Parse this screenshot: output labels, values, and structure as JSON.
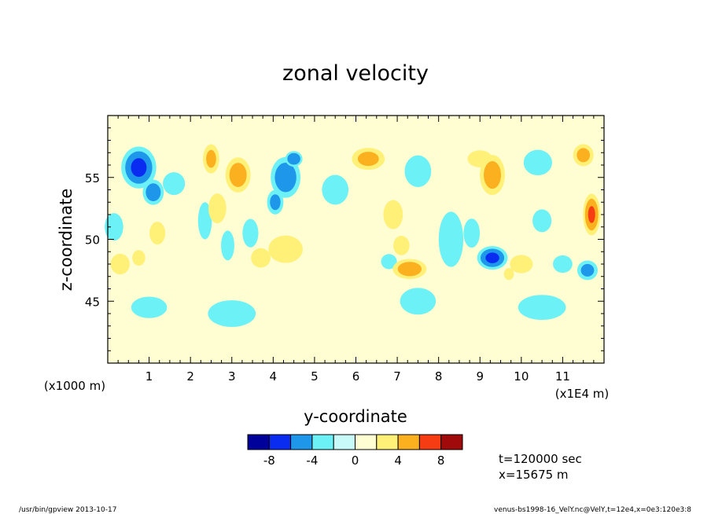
{
  "chart_data": {
    "type": "heatmap",
    "title": "zonal velocity",
    "xlabel": "y-coordinate",
    "ylabel": "z-coordinate",
    "x_unit_left": "(x1000 m)",
    "x_unit_right": "(x1E4 m)",
    "xlim": [
      0,
      12
    ],
    "ylim": [
      40,
      60
    ],
    "x_ticks": [
      "1",
      "2",
      "3",
      "4",
      "5",
      "6",
      "7",
      "8",
      "9",
      "10",
      "11"
    ],
    "y_ticks": [
      "45",
      "50",
      "55"
    ],
    "colorbar": {
      "levels": [
        -10,
        -8,
        -6,
        -4,
        -2,
        0,
        2,
        4,
        6,
        8,
        10
      ],
      "tick_labels": [
        "-8",
        "-4",
        "0",
        "4",
        "8"
      ],
      "colors": [
        "#00009a",
        "#0a2cf0",
        "#1e96ea",
        "#6cf2f6",
        "#c8fafa",
        "#fffdd2",
        "#fff078",
        "#fbb020",
        "#f63c12",
        "#a00a0a"
      ]
    },
    "blobs": [
      {
        "x": 0.75,
        "z": 55.8,
        "v": -6.2,
        "sx": 0.4,
        "sz": 1.6
      },
      {
        "x": 1.1,
        "z": 53.8,
        "v": -5.2,
        "sx": 0.25,
        "sz": 1.0
      },
      {
        "x": 0.3,
        "z": 48.0,
        "v": 3.6,
        "sx": 0.25,
        "sz": 0.9
      },
      {
        "x": 0.75,
        "z": 48.5,
        "v": 2.5,
        "sx": 0.2,
        "sz": 0.8
      },
      {
        "x": 1.2,
        "z": 50.5,
        "v": 2.4,
        "sx": 0.25,
        "sz": 1.2
      },
      {
        "x": 1.6,
        "z": 54.5,
        "v": -2.4,
        "sx": 0.35,
        "sz": 1.2
      },
      {
        "x": 2.5,
        "z": 56.5,
        "v": 4.4,
        "sx": 0.2,
        "sz": 1.2
      },
      {
        "x": 3.15,
        "z": 55.2,
        "v": 5.0,
        "sx": 0.3,
        "sz": 1.4
      },
      {
        "x": 2.65,
        "z": 52.5,
        "v": 3.0,
        "sx": 0.25,
        "sz": 1.4
      },
      {
        "x": 2.35,
        "z": 51.5,
        "v": -2.8,
        "sx": 0.2,
        "sz": 1.8
      },
      {
        "x": 2.9,
        "z": 49.5,
        "v": -2.6,
        "sx": 0.2,
        "sz": 1.5
      },
      {
        "x": 4.3,
        "z": 55.0,
        "v": -5.4,
        "sx": 0.35,
        "sz": 1.6
      },
      {
        "x": 4.5,
        "z": 56.5,
        "v": -5.8,
        "sx": 0.2,
        "sz": 0.6
      },
      {
        "x": 4.05,
        "z": 53.0,
        "v": -4.6,
        "sx": 0.2,
        "sz": 1.0
      },
      {
        "x": 3.45,
        "z": 50.5,
        "v": -2.4,
        "sx": 0.25,
        "sz": 1.5
      },
      {
        "x": 4.3,
        "z": 49.2,
        "v": 3.6,
        "sx": 0.45,
        "sz": 1.2
      },
      {
        "x": 3.7,
        "z": 48.5,
        "v": 2.5,
        "sx": 0.3,
        "sz": 1.0
      },
      {
        "x": 6.3,
        "z": 56.5,
        "v": 4.6,
        "sx": 0.4,
        "sz": 0.9
      },
      {
        "x": 6.9,
        "z": 52.0,
        "v": 2.5,
        "sx": 0.3,
        "sz": 1.5
      },
      {
        "x": 7.3,
        "z": 47.6,
        "v": 5.2,
        "sx": 0.4,
        "sz": 0.8
      },
      {
        "x": 7.1,
        "z": 49.5,
        "v": 2.5,
        "sx": 0.25,
        "sz": 1.0
      },
      {
        "x": 5.5,
        "z": 54.0,
        "v": -2.6,
        "sx": 0.4,
        "sz": 1.5
      },
      {
        "x": 6.8,
        "z": 48.2,
        "v": -2.4,
        "sx": 0.25,
        "sz": 0.8
      },
      {
        "x": 7.5,
        "z": 55.5,
        "v": -2.6,
        "sx": 0.4,
        "sz": 1.6
      },
      {
        "x": 9.3,
        "z": 55.2,
        "v": 5.0,
        "sx": 0.3,
        "sz": 1.6
      },
      {
        "x": 9.0,
        "z": 56.5,
        "v": 3.0,
        "sx": 0.35,
        "sz": 0.8
      },
      {
        "x": 10.4,
        "z": 56.2,
        "v": -3.0,
        "sx": 0.4,
        "sz": 1.2
      },
      {
        "x": 9.3,
        "z": 48.5,
        "v": -6.2,
        "sx": 0.35,
        "sz": 0.9
      },
      {
        "x": 8.8,
        "z": 50.5,
        "v": -2.5,
        "sx": 0.25,
        "sz": 1.5
      },
      {
        "x": 10.0,
        "z": 48.0,
        "v": 3.6,
        "sx": 0.3,
        "sz": 0.8
      },
      {
        "x": 9.7,
        "z": 47.2,
        "v": 2.6,
        "sx": 0.15,
        "sz": 0.6
      },
      {
        "x": 10.5,
        "z": 51.5,
        "v": -2.4,
        "sx": 0.3,
        "sz": 1.2
      },
      {
        "x": 11.5,
        "z": 56.8,
        "v": 4.6,
        "sx": 0.25,
        "sz": 0.9
      },
      {
        "x": 11.7,
        "z": 52.0,
        "v": 6.0,
        "sx": 0.2,
        "sz": 1.6
      },
      {
        "x": 11.6,
        "z": 47.5,
        "v": -4.6,
        "sx": 0.25,
        "sz": 0.8
      },
      {
        "x": 11.0,
        "z": 48.0,
        "v": -2.5,
        "sx": 0.3,
        "sz": 0.9
      },
      {
        "x": 0.15,
        "z": 51.0,
        "v": -2.3,
        "sx": 0.3,
        "sz": 1.5
      },
      {
        "x": 1.0,
        "z": 44.5,
        "v": -2.2,
        "sx": 0.6,
        "sz": 1.2
      },
      {
        "x": 3.0,
        "z": 44.0,
        "v": -2.2,
        "sx": 0.8,
        "sz": 1.5
      },
      {
        "x": 7.5,
        "z": 45.0,
        "v": -2.2,
        "sx": 0.6,
        "sz": 1.5
      },
      {
        "x": 8.3,
        "z": 50.0,
        "v": -2.3,
        "sx": 0.4,
        "sz": 3.0
      },
      {
        "x": 10.5,
        "z": 44.5,
        "v": -2.2,
        "sx": 0.8,
        "sz": 1.4
      }
    ]
  },
  "annotations": {
    "time": "t=120000  sec",
    "xpos": "x=15675  m"
  },
  "footer": {
    "left": "/usr/bin/gpview   2013-10-17",
    "right": "venus-bs1998-16_VelY.nc@VelY,t=12e4,x=0e3:120e3:8"
  }
}
